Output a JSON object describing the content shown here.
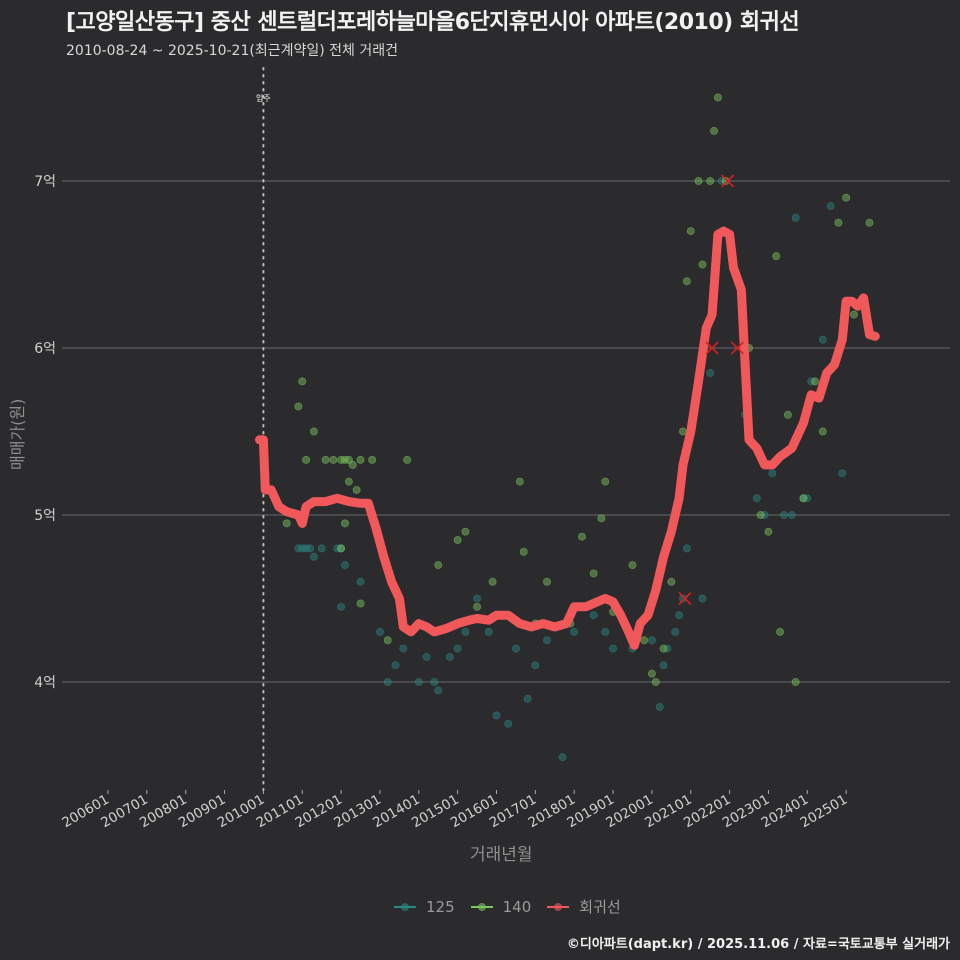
{
  "header": {
    "title": "[고양일산동구] 중산 센트럴더포레하늘마을6단지휴먼시아 아파트(2010) 회귀선",
    "subtitle": "2010-08-24 ~ 2025-10-21(최근계약일) 전체 거래건"
  },
  "axes": {
    "ylabel": "매매가(원)",
    "xlabel": "거래년월",
    "yticks": [
      {
        "label": "7억",
        "value": 7
      },
      {
        "label": "6억",
        "value": 6
      },
      {
        "label": "5억",
        "value": 5
      },
      {
        "label": "4억",
        "value": 4
      }
    ],
    "xticks": [
      "200601",
      "200701",
      "200801",
      "200901",
      "201001",
      "201101",
      "201201",
      "201301",
      "201401",
      "201501",
      "201601",
      "201701",
      "201801",
      "201901",
      "202001",
      "202101",
      "202201",
      "202301",
      "202401",
      "202501"
    ]
  },
  "annotation": {
    "label": "입주",
    "x": "201001"
  },
  "legend": [
    {
      "label": "125",
      "color": "#2a8a86"
    },
    {
      "label": "140",
      "color": "#7cc860"
    },
    {
      "label": "회귀선",
      "color": "#f0585a"
    }
  ],
  "footer": "©디아파트(dapt.kr) / 2025.11.06 / 자료=국토교통부 실거래가",
  "colors": {
    "background": "#2b2b2d",
    "grid": "#6a6a6a",
    "series125": "#2a8a86",
    "series140": "#7cc860",
    "regression": "#f0585a",
    "cancel": "#d42020"
  },
  "chart_data": {
    "type": "scatter",
    "title": "[고양일산동구] 중산 센트럴더포레하늘마을6단지휴먼시아 아파트(2010) 회귀선",
    "subtitle": "2010-08-24 ~ 2025-10-21(최근계약일) 전체 거래건",
    "xlabel": "거래년월",
    "ylabel": "매매가(원)",
    "ylim": [
      3.4,
      7.8
    ],
    "y_unit": "억",
    "grid": true,
    "legend_position": "bottom",
    "series": [
      {
        "name": "125",
        "type": "scatter",
        "points": [
          [
            2010.9,
            4.8
          ],
          [
            2011.0,
            4.8
          ],
          [
            2011.1,
            4.8
          ],
          [
            2011.2,
            4.8
          ],
          [
            2011.3,
            4.75
          ],
          [
            2011.5,
            4.8
          ],
          [
            2011.9,
            4.8
          ],
          [
            2012.0,
            4.8
          ],
          [
            2012.1,
            4.7
          ],
          [
            2012.0,
            4.45
          ],
          [
            2012.5,
            4.6
          ],
          [
            2013.0,
            4.3
          ],
          [
            2013.2,
            4.0
          ],
          [
            2013.4,
            4.1
          ],
          [
            2013.6,
            4.2
          ],
          [
            2014.0,
            4.0
          ],
          [
            2014.2,
            4.15
          ],
          [
            2014.4,
            4.0
          ],
          [
            2014.5,
            3.95
          ],
          [
            2014.8,
            4.15
          ],
          [
            2015.0,
            4.2
          ],
          [
            2015.2,
            4.3
          ],
          [
            2015.5,
            4.5
          ],
          [
            2015.8,
            4.3
          ],
          [
            2016.0,
            3.8
          ],
          [
            2016.3,
            3.75
          ],
          [
            2016.5,
            4.2
          ],
          [
            2016.8,
            3.9
          ],
          [
            2017.0,
            4.1
          ],
          [
            2017.3,
            4.25
          ],
          [
            2017.7,
            3.55
          ],
          [
            2018.0,
            4.3
          ],
          [
            2018.5,
            4.4
          ],
          [
            2018.8,
            4.3
          ],
          [
            2019.0,
            4.2
          ],
          [
            2019.5,
            4.2
          ],
          [
            2020.0,
            4.25
          ],
          [
            2020.2,
            3.85
          ],
          [
            2020.3,
            4.1
          ],
          [
            2020.4,
            4.2
          ],
          [
            2020.6,
            4.3
          ],
          [
            2020.7,
            4.4
          ],
          [
            2020.8,
            4.5
          ],
          [
            2020.9,
            4.8
          ],
          [
            2021.3,
            4.5
          ],
          [
            2021.5,
            5.85
          ],
          [
            2021.8,
            7.0
          ],
          [
            2022.4,
            5.6
          ],
          [
            2022.7,
            5.1
          ],
          [
            2022.9,
            5.0
          ],
          [
            2023.1,
            5.25
          ],
          [
            2023.4,
            5.0
          ],
          [
            2023.6,
            5.0
          ],
          [
            2023.7,
            6.78
          ],
          [
            2023.9,
            5.1
          ],
          [
            2024.0,
            5.1
          ],
          [
            2024.1,
            5.8
          ],
          [
            2024.4,
            6.05
          ],
          [
            2024.6,
            6.85
          ],
          [
            2024.9,
            5.25
          ]
        ]
      },
      {
        "name": "140",
        "type": "scatter",
        "points": [
          [
            2010.6,
            4.95
          ],
          [
            2010.9,
            5.65
          ],
          [
            2011.0,
            5.8
          ],
          [
            2011.1,
            5.33
          ],
          [
            2011.3,
            5.5
          ],
          [
            2011.6,
            5.33
          ],
          [
            2011.8,
            5.33
          ],
          [
            2012.0,
            5.33
          ],
          [
            2012.1,
            5.33
          ],
          [
            2012.2,
            5.33
          ],
          [
            2012.3,
            5.3
          ],
          [
            2012.5,
            5.33
          ],
          [
            2012.8,
            5.33
          ],
          [
            2012.2,
            5.2
          ],
          [
            2012.4,
            5.15
          ],
          [
            2012.1,
            4.95
          ],
          [
            2012.0,
            4.8
          ],
          [
            2012.5,
            4.47
          ],
          [
            2013.2,
            4.25
          ],
          [
            2013.7,
            5.33
          ],
          [
            2014.0,
            4.35
          ],
          [
            2014.5,
            4.7
          ],
          [
            2015.0,
            4.85
          ],
          [
            2015.2,
            4.9
          ],
          [
            2015.5,
            4.45
          ],
          [
            2015.9,
            4.6
          ],
          [
            2016.3,
            4.4
          ],
          [
            2016.6,
            5.2
          ],
          [
            2016.7,
            4.78
          ],
          [
            2017.0,
            4.35
          ],
          [
            2017.3,
            4.6
          ],
          [
            2017.9,
            4.35
          ],
          [
            2018.2,
            4.87
          ],
          [
            2018.5,
            4.65
          ],
          [
            2018.7,
            4.98
          ],
          [
            2018.8,
            5.2
          ],
          [
            2019.0,
            4.42
          ],
          [
            2019.5,
            4.7
          ],
          [
            2019.8,
            4.25
          ],
          [
            2020.0,
            4.05
          ],
          [
            2020.1,
            4.0
          ],
          [
            2020.3,
            4.2
          ],
          [
            2020.5,
            4.6
          ],
          [
            2020.8,
            5.5
          ],
          [
            2020.9,
            6.4
          ],
          [
            2021.0,
            6.7
          ],
          [
            2021.2,
            7.0
          ],
          [
            2021.3,
            6.5
          ],
          [
            2021.5,
            7.0
          ],
          [
            2021.6,
            7.3
          ],
          [
            2021.7,
            7.5
          ],
          [
            2021.9,
            7.0
          ],
          [
            2022.5,
            6.0
          ],
          [
            2022.8,
            5.0
          ],
          [
            2023.0,
            4.9
          ],
          [
            2023.2,
            6.55
          ],
          [
            2023.3,
            4.3
          ],
          [
            2023.5,
            5.6
          ],
          [
            2023.7,
            4.0
          ],
          [
            2023.9,
            5.1
          ],
          [
            2024.2,
            5.8
          ],
          [
            2024.4,
            5.5
          ],
          [
            2024.8,
            6.75
          ],
          [
            2025.0,
            6.9
          ],
          [
            2025.2,
            6.2
          ],
          [
            2025.6,
            6.75
          ]
        ]
      },
      {
        "name": "회귀선",
        "type": "line",
        "points": [
          [
            2009.9,
            5.45
          ],
          [
            2010.0,
            5.45
          ],
          [
            2010.05,
            5.15
          ],
          [
            2010.2,
            5.15
          ],
          [
            2010.4,
            5.05
          ],
          [
            2010.6,
            5.02
          ],
          [
            2010.9,
            5.0
          ],
          [
            2011.0,
            4.95
          ],
          [
            2011.1,
            5.05
          ],
          [
            2011.3,
            5.08
          ],
          [
            2011.6,
            5.08
          ],
          [
            2011.9,
            5.1
          ],
          [
            2012.2,
            5.08
          ],
          [
            2012.5,
            5.07
          ],
          [
            2012.7,
            5.07
          ],
          [
            2012.9,
            4.92
          ],
          [
            2013.1,
            4.75
          ],
          [
            2013.3,
            4.6
          ],
          [
            2013.5,
            4.5
          ],
          [
            2013.6,
            4.33
          ],
          [
            2013.8,
            4.3
          ],
          [
            2014.0,
            4.35
          ],
          [
            2014.2,
            4.33
          ],
          [
            2014.4,
            4.3
          ],
          [
            2014.7,
            4.32
          ],
          [
            2015.0,
            4.35
          ],
          [
            2015.3,
            4.37
          ],
          [
            2015.5,
            4.38
          ],
          [
            2015.8,
            4.37
          ],
          [
            2016.0,
            4.4
          ],
          [
            2016.3,
            4.4
          ],
          [
            2016.6,
            4.35
          ],
          [
            2016.9,
            4.33
          ],
          [
            2017.2,
            4.35
          ],
          [
            2017.5,
            4.33
          ],
          [
            2017.8,
            4.35
          ],
          [
            2018.0,
            4.45
          ],
          [
            2018.3,
            4.45
          ],
          [
            2018.6,
            4.48
          ],
          [
            2018.8,
            4.5
          ],
          [
            2019.0,
            4.48
          ],
          [
            2019.2,
            4.4
          ],
          [
            2019.4,
            4.3
          ],
          [
            2019.55,
            4.22
          ],
          [
            2019.7,
            4.35
          ],
          [
            2019.9,
            4.4
          ],
          [
            2020.1,
            4.55
          ],
          [
            2020.3,
            4.75
          ],
          [
            2020.5,
            4.9
          ],
          [
            2020.7,
            5.1
          ],
          [
            2020.8,
            5.3
          ],
          [
            2021.0,
            5.5
          ],
          [
            2021.2,
            5.8
          ],
          [
            2021.4,
            6.12
          ],
          [
            2021.55,
            6.2
          ],
          [
            2021.7,
            6.68
          ],
          [
            2021.85,
            6.7
          ],
          [
            2022.0,
            6.68
          ],
          [
            2022.1,
            6.48
          ],
          [
            2022.3,
            6.35
          ],
          [
            2022.5,
            5.45
          ],
          [
            2022.7,
            5.4
          ],
          [
            2022.9,
            5.3
          ],
          [
            2023.1,
            5.3
          ],
          [
            2023.3,
            5.35
          ],
          [
            2023.6,
            5.4
          ],
          [
            2023.9,
            5.55
          ],
          [
            2024.1,
            5.72
          ],
          [
            2024.3,
            5.7
          ],
          [
            2024.5,
            5.85
          ],
          [
            2024.7,
            5.9
          ],
          [
            2024.9,
            6.05
          ],
          [
            2025.0,
            6.28
          ],
          [
            2025.15,
            6.28
          ],
          [
            2025.3,
            6.25
          ],
          [
            2025.45,
            6.3
          ],
          [
            2025.6,
            6.08
          ],
          [
            2025.75,
            6.07
          ]
        ]
      },
      {
        "name": "취소(X)",
        "type": "marker",
        "points": [
          [
            2021.95,
            7.0
          ],
          [
            2021.55,
            6.0
          ],
          [
            2022.2,
            6.0
          ],
          [
            2020.85,
            4.5
          ]
        ]
      }
    ],
    "x_range": [
      "200601",
      "202510"
    ],
    "vline": {
      "x": 2010.0,
      "label": "입주"
    }
  }
}
